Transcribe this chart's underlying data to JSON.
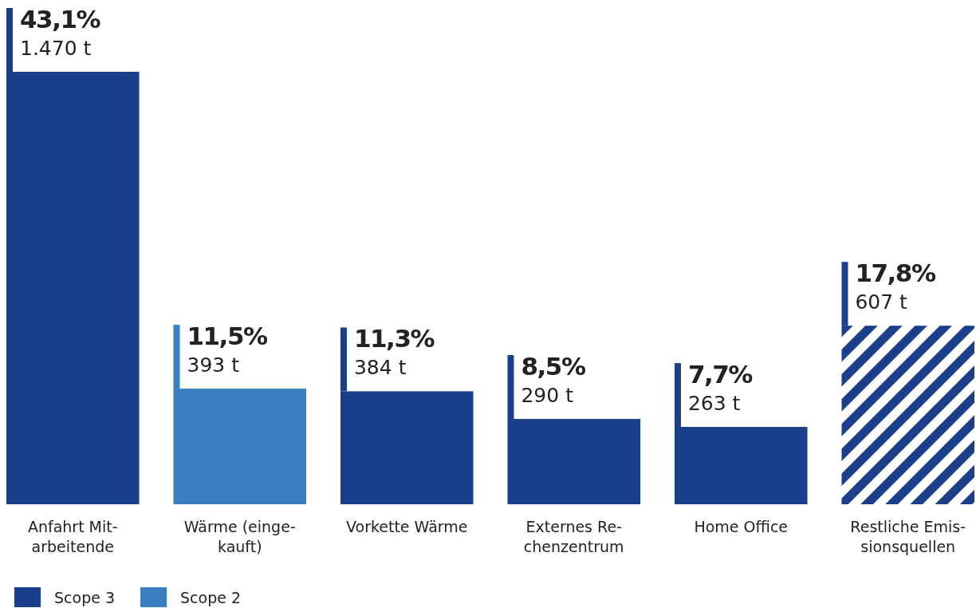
{
  "chart_data": {
    "type": "bar",
    "categories": [
      "Anfahrt Mit-\narbeitende",
      "Wärme (einge-\nkauft)",
      "Vorkette Wärme",
      "Externes Re-\nchenzentrum",
      "Home Office",
      "Restliche Emis-\nsionsquellen"
    ],
    "series": [
      {
        "name": "Scope 3",
        "color": "#1b3f8a",
        "values": [
          1470,
          null,
          384,
          290,
          263,
          null
        ],
        "value_labels": [
          "43,1%\n1.470 t",
          null,
          "11,3%\n384 t",
          "8,5%\n290 t",
          "7,7%\n263 t",
          null
        ]
      },
      {
        "name": "Scope 2",
        "color": "#3a7fc2",
        "values": [
          null,
          393,
          null,
          null,
          null,
          null
        ],
        "value_labels": [
          null,
          "11,5%\n393 t",
          null,
          null,
          null,
          null
        ]
      },
      {
        "color": "#1b3f8a",
        "values": [
          null,
          null,
          null,
          null,
          null,
          607
        ],
        "value_labels": [
          null,
          null,
          null,
          null,
          null,
          "17,8%\n607 t"
        ]
      }
    ],
    "legend": "bottom left"
  }
}
